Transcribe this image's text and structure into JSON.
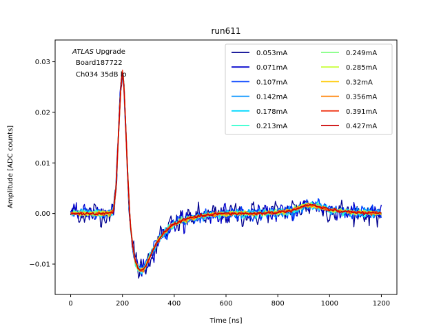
{
  "chart_data": {
    "type": "line",
    "title": "run611",
    "xlabel": "Time [ns]",
    "ylabel": "Amplitude [ADC counts]",
    "xlim": [
      -60,
      1260
    ],
    "ylim": [
      -0.016,
      0.0343
    ],
    "xticks": [
      0,
      200,
      400,
      600,
      800,
      1000,
      1200
    ],
    "xtick_labels": [
      "0",
      "200",
      "400",
      "600",
      "800",
      "1000",
      "1200"
    ],
    "yticks": [
      -0.01,
      0.0,
      0.01,
      0.02,
      0.03
    ],
    "ytick_labels": [
      "−0.01",
      "0.00",
      "0.01",
      "0.02",
      "0.03"
    ],
    "annotation": {
      "italic": "ATLAS",
      "line1_rest": " Upgrade",
      "line2": "Board187722",
      "line3": "Ch034 35dB lo"
    },
    "legend_position": "top-right",
    "pulse_shape": {
      "x": [
        0,
        150,
        165,
        175,
        185,
        195,
        200,
        205,
        212,
        220,
        230,
        240,
        250,
        260,
        270,
        280,
        290,
        300,
        320,
        340,
        360,
        380,
        400,
        430,
        460,
        500,
        550,
        600,
        700,
        800,
        850,
        880,
        900,
        930,
        960,
        1000,
        1050,
        1100,
        1150,
        1200
      ],
      "y": [
        0.0,
        0.0,
        0.0004,
        0.005,
        0.016,
        0.026,
        0.028,
        0.026,
        0.018,
        0.008,
        -0.002,
        -0.0065,
        -0.0095,
        -0.0108,
        -0.0113,
        -0.0112,
        -0.0104,
        -0.0092,
        -0.007,
        -0.0052,
        -0.0038,
        -0.0028,
        -0.0021,
        -0.0014,
        -0.0009,
        -0.0005,
        -0.0002,
        0.0,
        0.0,
        0.0002,
        0.0006,
        0.001,
        0.0015,
        0.0017,
        0.0013,
        0.0007,
        0.0004,
        0.0002,
        0.0001,
        0.0
      ]
    },
    "series": [
      {
        "name": "0.053mA",
        "color": "#00008f",
        "noise": 0.0015,
        "scale": 1.0
      },
      {
        "name": "0.071mA",
        "color": "#0000cc",
        "noise": 0.0011,
        "scale": 1.0
      },
      {
        "name": "0.107mA",
        "color": "#0040ff",
        "noise": 0.0008,
        "scale": 1.0
      },
      {
        "name": "0.142mA",
        "color": "#0090ff",
        "noise": 0.0006,
        "scale": 1.0
      },
      {
        "name": "0.178mA",
        "color": "#00d8ff",
        "noise": 0.0005,
        "scale": 1.0
      },
      {
        "name": "0.213mA",
        "color": "#30ffcf",
        "noise": 0.0004,
        "scale": 1.0
      },
      {
        "name": "0.249mA",
        "color": "#80ff80",
        "noise": 0.00035,
        "scale": 1.0
      },
      {
        "name": "0.285mA",
        "color": "#c8ff38",
        "noise": 0.0003,
        "scale": 1.0
      },
      {
        "name": "0.32mA",
        "color": "#ffc800",
        "noise": 0.00028,
        "scale": 1.0
      },
      {
        "name": "0.356mA",
        "color": "#ff8000",
        "noise": 0.00025,
        "scale": 1.0
      },
      {
        "name": "0.391mA",
        "color": "#f03a1a",
        "noise": 0.00022,
        "scale": 1.0
      },
      {
        "name": "0.427mA",
        "color": "#cc0000",
        "noise": 0.0002,
        "scale": 1.0
      }
    ]
  }
}
